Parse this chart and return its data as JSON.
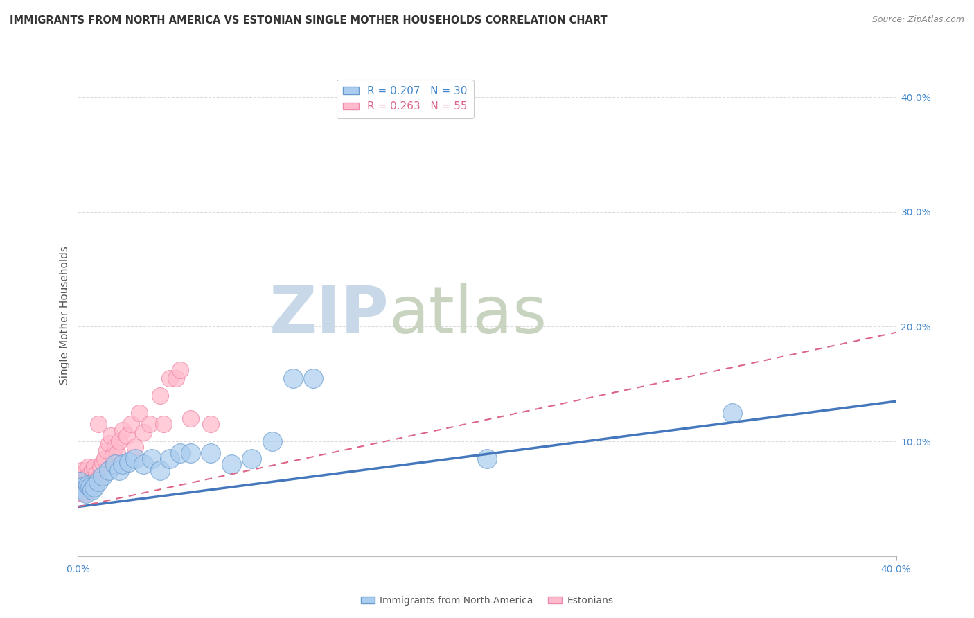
{
  "title": "IMMIGRANTS FROM NORTH AMERICA VS ESTONIAN SINGLE MOTHER HOUSEHOLDS CORRELATION CHART",
  "source": "Source: ZipAtlas.com",
  "ylabel": "Single Mother Households",
  "xlim": [
    0.0,
    0.4
  ],
  "ylim": [
    0.0,
    0.42
  ],
  "yticks_right": [
    0.1,
    0.2,
    0.3,
    0.4
  ],
  "ytick_labels_right": [
    "10.0%",
    "20.0%",
    "30.0%",
    "40.0%"
  ],
  "legend_entries": [
    {
      "label": "R = 0.207   N = 30"
    },
    {
      "label": "R = 0.263   N = 55"
    }
  ],
  "legend_bottom": [
    {
      "label": "Immigrants from North America"
    },
    {
      "label": "Estonians"
    }
  ],
  "blue_scatter": {
    "x": [
      0.001,
      0.002,
      0.003,
      0.004,
      0.005,
      0.006,
      0.007,
      0.008,
      0.01,
      0.012,
      0.015,
      0.018,
      0.02,
      0.022,
      0.025,
      0.028,
      0.032,
      0.036,
      0.04,
      0.045,
      0.05,
      0.055,
      0.065,
      0.075,
      0.085,
      0.095,
      0.105,
      0.115,
      0.2,
      0.32
    ],
    "y": [
      0.065,
      0.06,
      0.058,
      0.055,
      0.062,
      0.06,
      0.058,
      0.06,
      0.065,
      0.07,
      0.075,
      0.08,
      0.075,
      0.08,
      0.082,
      0.085,
      0.08,
      0.085,
      0.075,
      0.085,
      0.09,
      0.09,
      0.09,
      0.08,
      0.085,
      0.1,
      0.155,
      0.155,
      0.085,
      0.125
    ]
  },
  "pink_scatter": {
    "x": [
      0.001,
      0.001,
      0.001,
      0.001,
      0.002,
      0.002,
      0.002,
      0.002,
      0.002,
      0.003,
      0.003,
      0.003,
      0.003,
      0.004,
      0.004,
      0.004,
      0.004,
      0.005,
      0.005,
      0.005,
      0.005,
      0.006,
      0.006,
      0.006,
      0.007,
      0.007,
      0.008,
      0.008,
      0.009,
      0.01,
      0.01,
      0.011,
      0.012,
      0.013,
      0.014,
      0.015,
      0.016,
      0.017,
      0.018,
      0.019,
      0.02,
      0.022,
      0.024,
      0.026,
      0.028,
      0.03,
      0.032,
      0.035,
      0.04,
      0.042,
      0.045,
      0.048,
      0.05,
      0.055,
      0.065
    ],
    "y": [
      0.055,
      0.06,
      0.065,
      0.07,
      0.055,
      0.06,
      0.065,
      0.07,
      0.075,
      0.055,
      0.06,
      0.065,
      0.07,
      0.055,
      0.06,
      0.068,
      0.075,
      0.06,
      0.065,
      0.07,
      0.078,
      0.058,
      0.065,
      0.072,
      0.068,
      0.075,
      0.062,
      0.078,
      0.072,
      0.068,
      0.115,
      0.078,
      0.082,
      0.085,
      0.092,
      0.098,
      0.105,
      0.088,
      0.095,
      0.09,
      0.1,
      0.11,
      0.105,
      0.115,
      0.095,
      0.125,
      0.108,
      0.115,
      0.14,
      0.115,
      0.155,
      0.155,
      0.162,
      0.12,
      0.115
    ]
  },
  "blue_trend": {
    "x_start": 0.0,
    "x_end": 0.4,
    "y_start": 0.043,
    "y_end": 0.135
  },
  "pink_trend": {
    "x_start": 0.0,
    "x_end": 0.4,
    "y_start": 0.043,
    "y_end": 0.195
  },
  "background_color": "#ffffff",
  "grid_color": "#cccccc",
  "title_color": "#333333",
  "source_color": "#888888",
  "blue_color": "#aaccee",
  "blue_edge": "#6699cc",
  "pink_color": "#ffbbcc",
  "pink_edge": "#ee88aa",
  "blue_line_color": "#4477bb",
  "pink_line_color": "#dd6688",
  "watermark_zip_color": "#c8d8e8",
  "watermark_atlas_color": "#c8d4c0"
}
